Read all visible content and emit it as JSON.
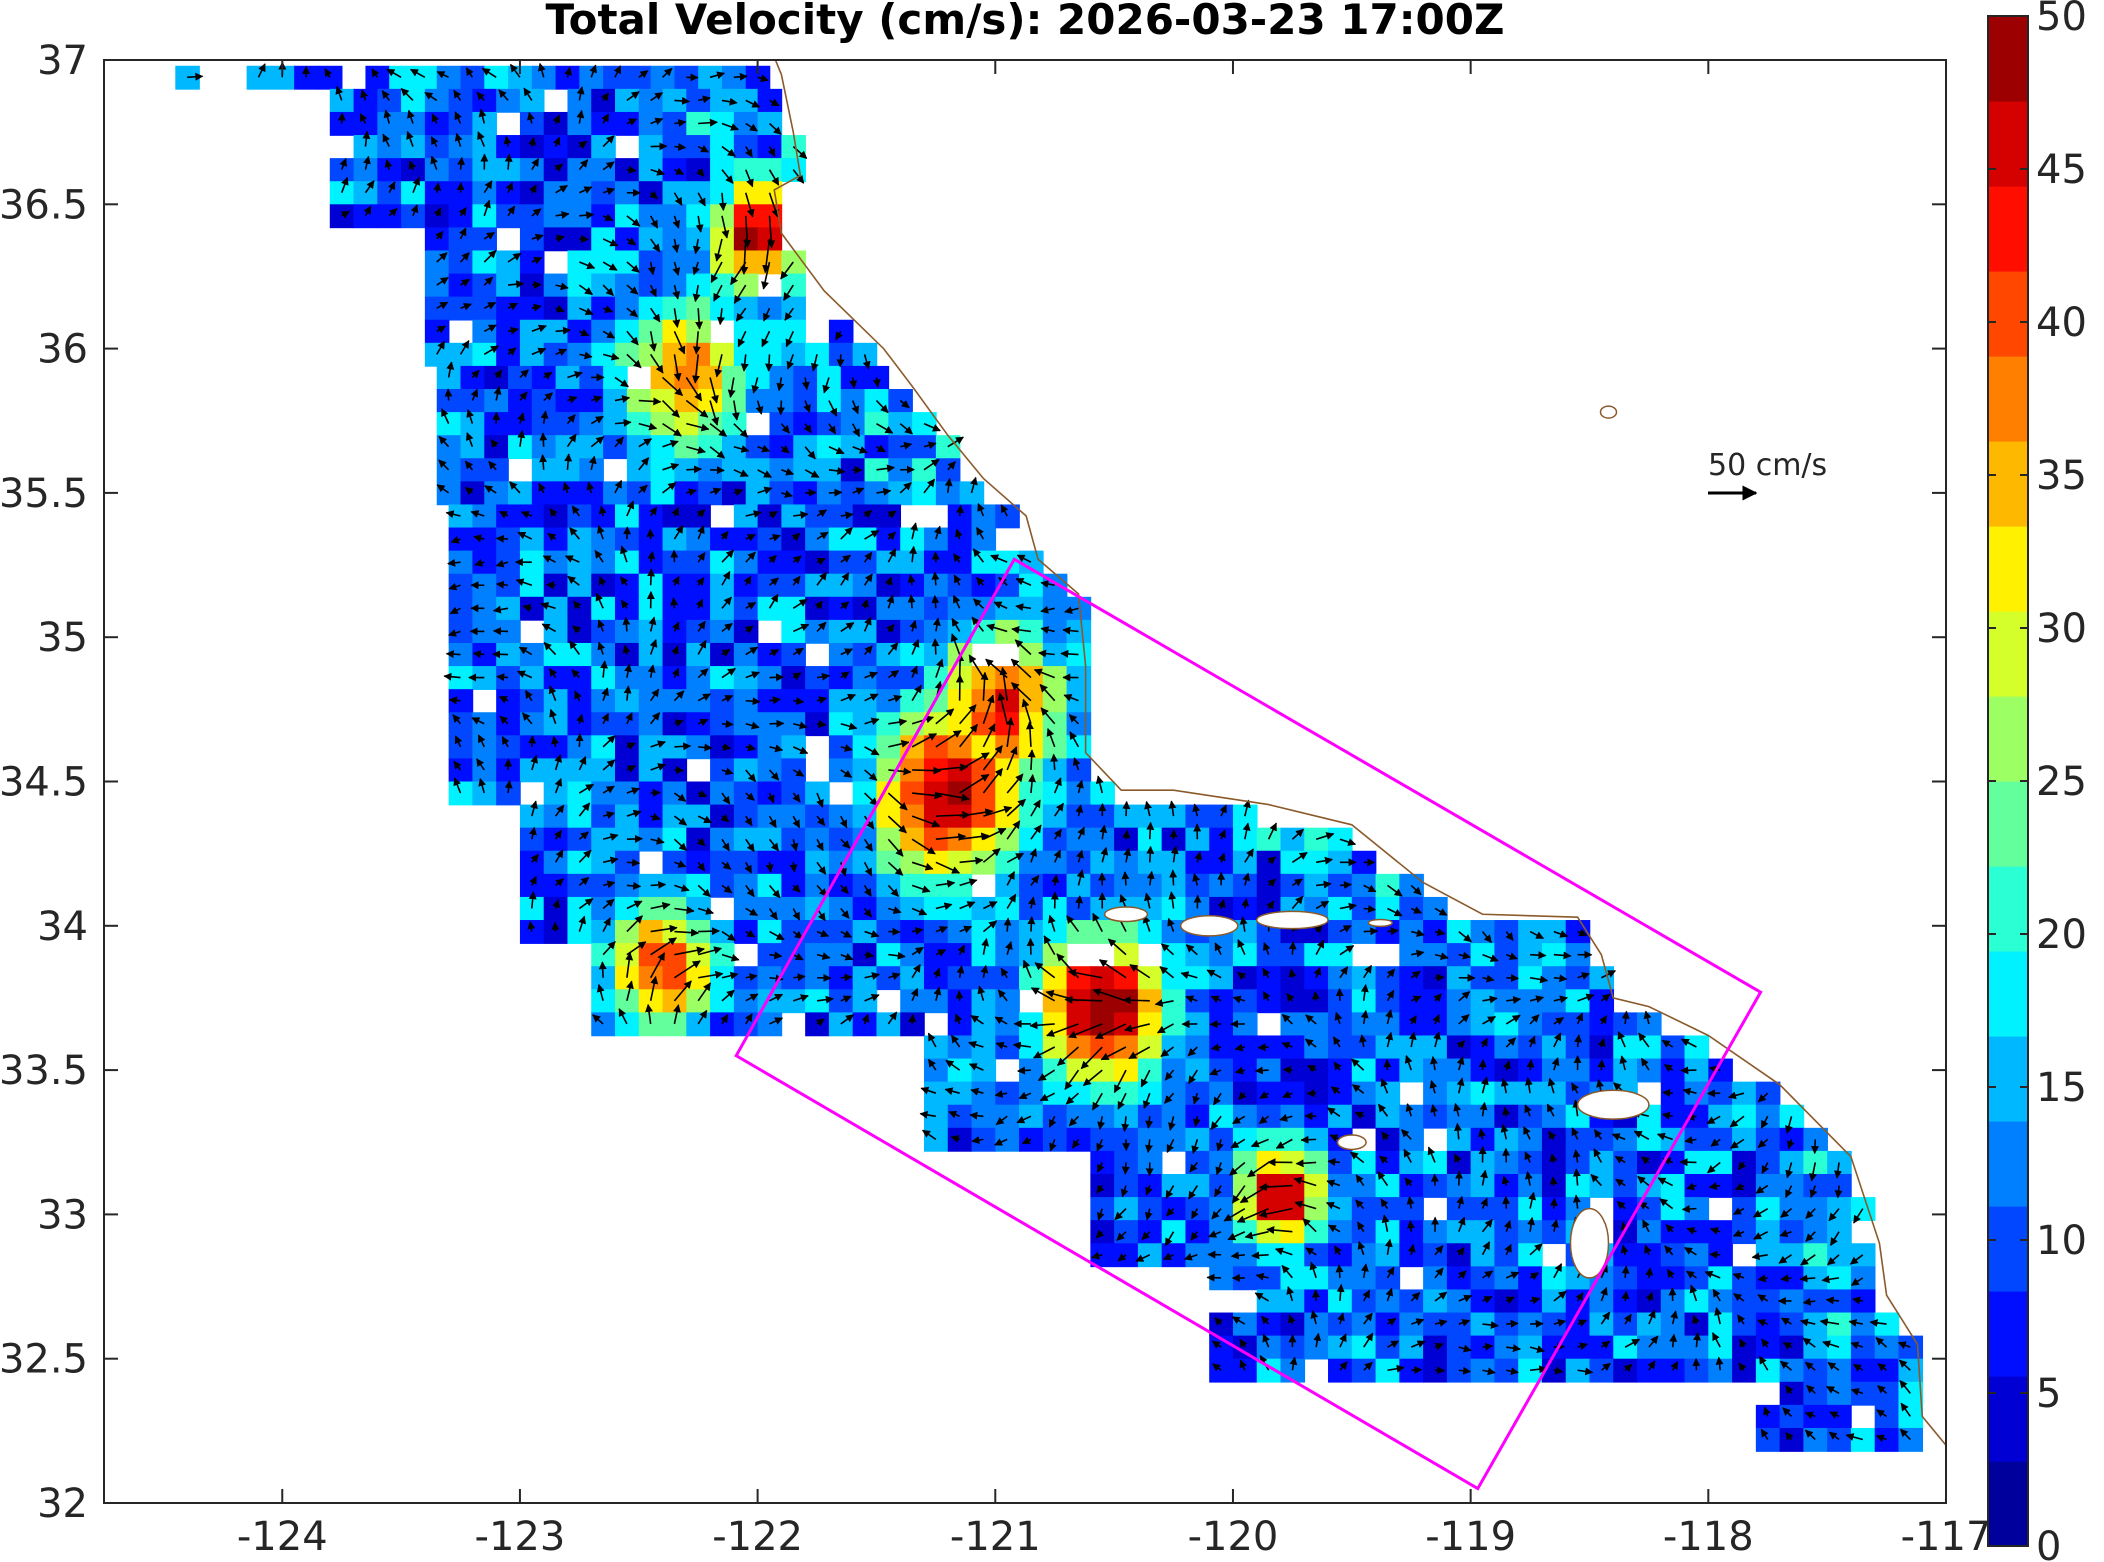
{
  "title": "Total Velocity (cm/s): 2026-03-23 17:00Z",
  "x_ticks": [
    "-124",
    "-123",
    "-122",
    "-121",
    "-120",
    "-119",
    "-118",
    "-117"
  ],
  "y_ticks": [
    "37",
    "36.5",
    "36",
    "35.5",
    "35",
    "34.5",
    "34",
    "33.5",
    "33",
    "32.5",
    "32"
  ],
  "colorbar": {
    "min": 0,
    "max": 50,
    "step": 5,
    "tick_labels": [
      "0",
      "5",
      "10",
      "15",
      "20",
      "25",
      "30",
      "35",
      "40",
      "45",
      "50"
    ],
    "colormap": "jet"
  },
  "scale_label": "50 cm/s",
  "colors": {
    "box": "#ff00ff",
    "coast": "#8b5a2b",
    "arrows": "#000000"
  },
  "map_extent": {
    "lon": [
      -124.75,
      -117
    ],
    "lat": [
      32,
      37
    ]
  },
  "region_box": {
    "label": "",
    "corners_lonlat": [
      [
        -120.92,
        35.27
      ],
      [
        -117.78,
        33.77
      ],
      [
        -118.97,
        32.05
      ],
      [
        -122.09,
        33.55
      ]
    ]
  },
  "islands": [
    "San Miguel Island",
    "Santa Rosa Island",
    "Santa Cruz Island",
    "Anacapa Island",
    "Santa Catalina Island",
    "San Clemente Island",
    "San Nicolas Island"
  ]
}
